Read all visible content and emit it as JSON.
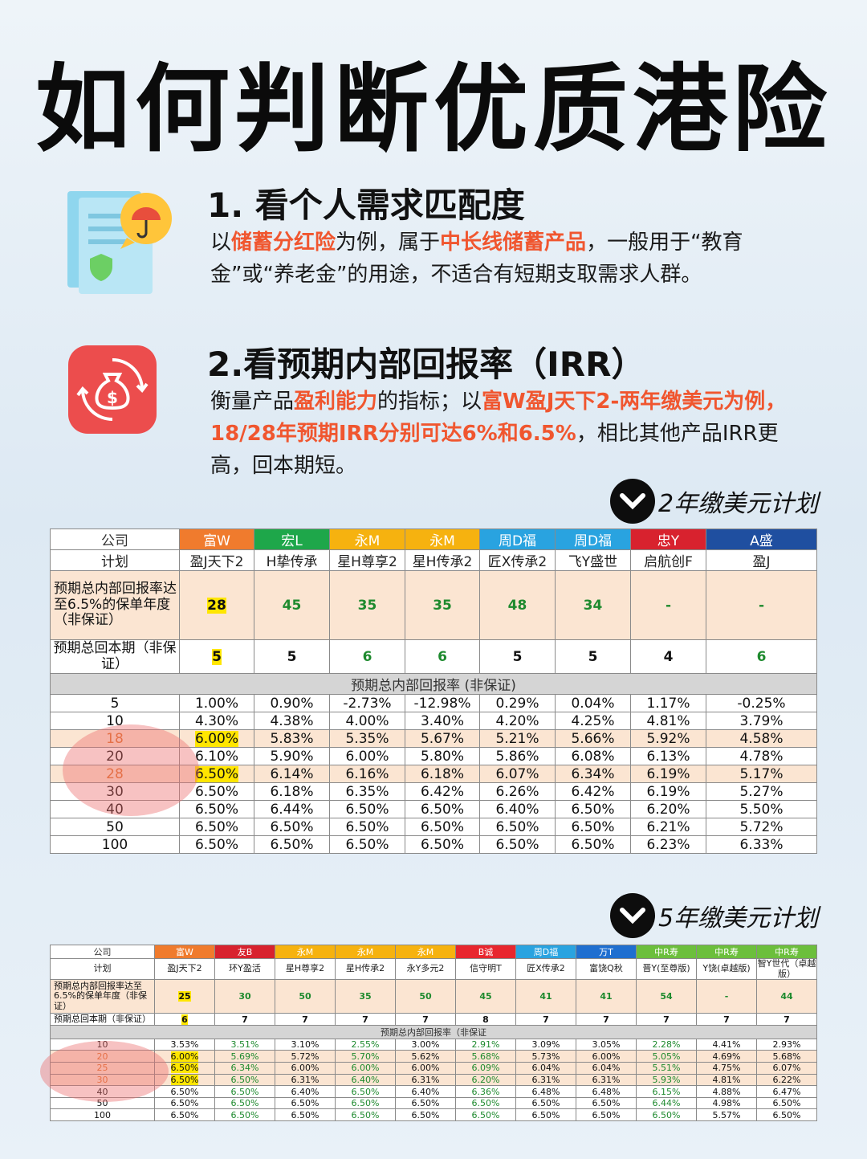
{
  "title": "如何判断优质港险",
  "section1": {
    "heading": "1. 看个人需求匹配度",
    "t1": "以",
    "h1": "储蓄分红险",
    "t2": "为例，属于",
    "h2": "中长线储蓄产品",
    "t3": "，一般用于“教育金”或“养老金”的用途，不适合有短期支取需求人群。"
  },
  "section2": {
    "heading": "2.看预期内部回报率（IRR）",
    "t1": "衡量产品",
    "h1": "盈利能力",
    "t2": "的指标；以",
    "h2": "富W盈J天下2-两年缴美元为例，18/28年预期IRR分别可达6%和6.5%",
    "t3": "，相比其他产品IRR更高，回本期短。"
  },
  "plan2_label": "2年缴美元计划",
  "plan5_label": "5年缴美元计划",
  "table1": {
    "companies": [
      {
        "name": "公司",
        "color": "#ffffff"
      },
      {
        "name": "富W",
        "color": "#f07b2d"
      },
      {
        "name": "宏L",
        "color": "#1ea74a"
      },
      {
        "name": "永M",
        "color": "#f6b20f"
      },
      {
        "name": "永M",
        "color": "#f6b20f"
      },
      {
        "name": "周D福",
        "color": "#29a3e0"
      },
      {
        "name": "周D福",
        "color": "#29a3e0"
      },
      {
        "name": "忠Y",
        "color": "#d8222e"
      },
      {
        "name": "A盛",
        "color": "#1f4fa0"
      }
    ],
    "plans": [
      "计划",
      "盈J天下2",
      "H挚传承",
      "星H尊享2",
      "星H传承2",
      "匠X传承2",
      "飞Y盛世",
      "启航创F",
      "盈J"
    ],
    "row_reach_label": "预期总内部回报率达至6.5%的保单年度（非保证）",
    "row_reach": [
      "28",
      "45",
      "35",
      "35",
      "48",
      "34",
      "-",
      "-"
    ],
    "row_payback_label": "预期总回本期（非保证）",
    "row_payback": [
      "5",
      "5",
      "6",
      "6",
      "5",
      "5",
      "4",
      "6"
    ],
    "irr_header": "预期总内部回报率 (非保证)",
    "rows": [
      [
        "5",
        "1.00%",
        "0.90%",
        "-2.73%",
        "-12.98%",
        "0.29%",
        "0.04%",
        "1.17%",
        "-0.25%"
      ],
      [
        "10",
        "4.30%",
        "4.38%",
        "4.00%",
        "3.40%",
        "4.20%",
        "4.25%",
        "4.81%",
        "3.79%"
      ],
      [
        "18",
        "6.00%",
        "5.83%",
        "5.35%",
        "5.67%",
        "5.21%",
        "5.66%",
        "5.92%",
        "4.58%"
      ],
      [
        "20",
        "6.10%",
        "5.90%",
        "6.00%",
        "5.80%",
        "5.86%",
        "6.08%",
        "6.13%",
        "4.78%"
      ],
      [
        "28",
        "6.50%",
        "6.14%",
        "6.16%",
        "6.18%",
        "6.07%",
        "6.34%",
        "6.19%",
        "5.17%"
      ],
      [
        "30",
        "6.50%",
        "6.18%",
        "6.35%",
        "6.42%",
        "6.26%",
        "6.42%",
        "6.19%",
        "5.27%"
      ],
      [
        "40",
        "6.50%",
        "6.44%",
        "6.50%",
        "6.50%",
        "6.40%",
        "6.50%",
        "6.20%",
        "5.50%"
      ],
      [
        "50",
        "6.50%",
        "6.50%",
        "6.50%",
        "6.50%",
        "6.50%",
        "6.50%",
        "6.21%",
        "5.72%"
      ],
      [
        "100",
        "6.50%",
        "6.50%",
        "6.50%",
        "6.50%",
        "6.50%",
        "6.50%",
        "6.23%",
        "6.33%"
      ]
    ]
  },
  "table2": {
    "companies": [
      {
        "name": "公司",
        "color": "#ffffff"
      },
      {
        "name": "富W",
        "color": "#f07b2d"
      },
      {
        "name": "友B",
        "color": "#d8222e"
      },
      {
        "name": "永M",
        "color": "#f6b20f"
      },
      {
        "name": "永M",
        "color": "#f6b20f"
      },
      {
        "name": "永M",
        "color": "#f6b20f"
      },
      {
        "name": "B诚",
        "color": "#e8262e"
      },
      {
        "name": "周D福",
        "color": "#29a3e0"
      },
      {
        "name": "万T",
        "color": "#1f6fd0"
      },
      {
        "name": "中R寿",
        "color": "#6cbf3c"
      },
      {
        "name": "中R寿",
        "color": "#6cbf3c"
      },
      {
        "name": "中R寿",
        "color": "#6cbf3c"
      }
    ],
    "plans": [
      "计划",
      "盈J天下2",
      "环Y盈活",
      "星H尊享2",
      "星H传承2",
      "永Y多元2",
      "信守明T",
      "匠X传承2",
      "富饶Q秋",
      "晋Y(至尊版)",
      "Y饶(卓越版)",
      "智Y世代（卓越版）"
    ],
    "row_reach_label": "预期总内部回报率达至6.5%的保单年度（非保证）",
    "row_reach": [
      "25",
      "30",
      "50",
      "35",
      "50",
      "45",
      "41",
      "41",
      "54",
      "-",
      "44"
    ],
    "row_payback_label": "预期总回本期（非保证）",
    "row_payback": [
      "6",
      "7",
      "7",
      "7",
      "7",
      "8",
      "7",
      "7",
      "7",
      "7",
      "7"
    ],
    "irr_header": "预期总内部回报率（非保证",
    "rows": [
      [
        "10",
        "3.53%",
        "3.51%",
        "3.10%",
        "2.55%",
        "3.00%",
        "2.91%",
        "3.09%",
        "3.05%",
        "2.28%",
        "4.41%",
        "2.93%"
      ],
      [
        "20",
        "6.00%",
        "5.69%",
        "5.72%",
        "5.70%",
        "5.62%",
        "5.68%",
        "5.73%",
        "6.00%",
        "5.05%",
        "4.69%",
        "5.68%"
      ],
      [
        "25",
        "6.50%",
        "6.34%",
        "6.00%",
        "6.00%",
        "6.00%",
        "6.09%",
        "6.04%",
        "6.04%",
        "5.51%",
        "4.75%",
        "6.07%"
      ],
      [
        "30",
        "6.50%",
        "6.50%",
        "6.31%",
        "6.40%",
        "6.31%",
        "6.20%",
        "6.31%",
        "6.31%",
        "5.93%",
        "4.81%",
        "6.22%"
      ],
      [
        "40",
        "6.50%",
        "6.50%",
        "6.40%",
        "6.50%",
        "6.40%",
        "6.36%",
        "6.48%",
        "6.48%",
        "6.15%",
        "4.88%",
        "6.47%"
      ],
      [
        "50",
        "6.50%",
        "6.50%",
        "6.50%",
        "6.50%",
        "6.50%",
        "6.50%",
        "6.50%",
        "6.50%",
        "6.44%",
        "4.98%",
        "6.50%"
      ],
      [
        "100",
        "6.50%",
        "6.50%",
        "6.50%",
        "6.50%",
        "6.50%",
        "6.50%",
        "6.50%",
        "6.50%",
        "6.50%",
        "5.57%",
        "6.50%"
      ]
    ]
  }
}
